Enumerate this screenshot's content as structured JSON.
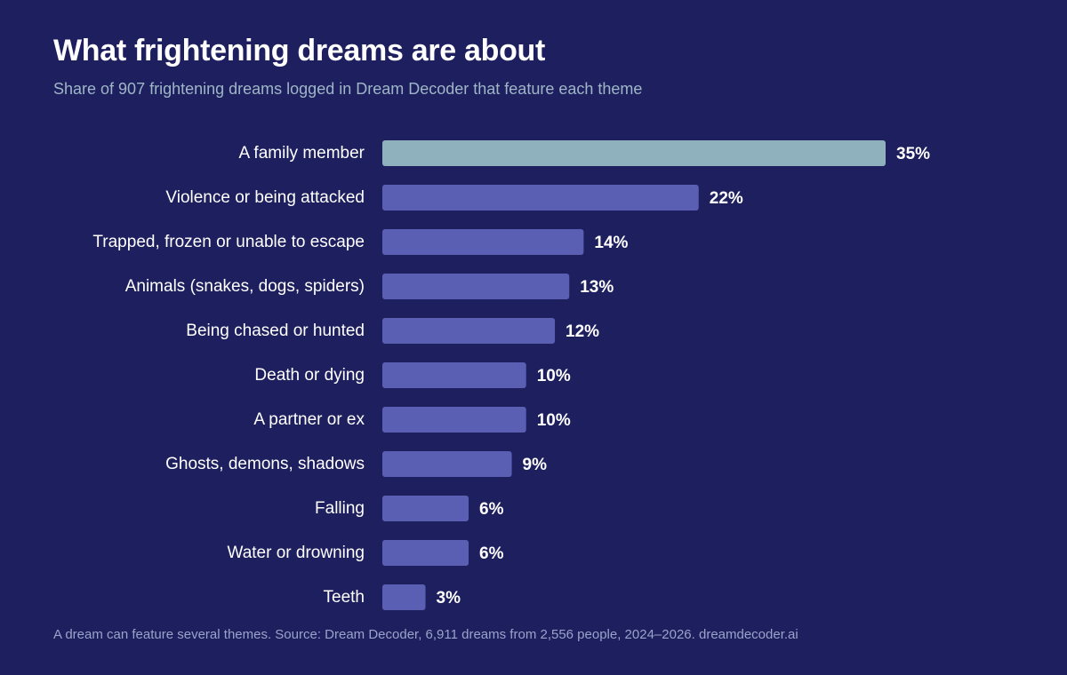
{
  "title": "What frightening dreams are about",
  "subtitle": "Share of 907 frightening dreams logged in Dream Decoder that feature each theme",
  "footnote": "A dream can feature several themes. Source: Dream Decoder, 6,911 dreams from 2,556 people, 2024–2026. dreamdecoder.ai",
  "colors": {
    "background": "#1e1f5e",
    "highlight_bar": "#8fb0bd",
    "bar": "#5b5fb3",
    "text": "#ffffff",
    "subtitle": "#9fb6c7",
    "footnote": "#9aa3c9"
  },
  "chart_data": {
    "type": "bar",
    "orientation": "horizontal",
    "categories": [
      "A family member",
      "Violence or being attacked",
      "Trapped, frozen or unable to escape",
      "Animals (snakes, dogs, spiders)",
      "Being chased or hunted",
      "Death or dying",
      "A partner or ex",
      "Ghosts, demons, shadows",
      "Falling",
      "Water or drowning",
      "Teeth"
    ],
    "values": [
      35,
      22,
      14,
      13,
      12,
      10,
      10,
      9,
      6,
      6,
      3
    ],
    "value_labels": [
      "35%",
      "22%",
      "14%",
      "13%",
      "12%",
      "10%",
      "10%",
      "9%",
      "6%",
      "6%",
      "3%"
    ],
    "highlighted_category": "A family member",
    "unit": "%",
    "xlim": [
      0,
      35
    ],
    "grid": false,
    "legend": "none"
  }
}
